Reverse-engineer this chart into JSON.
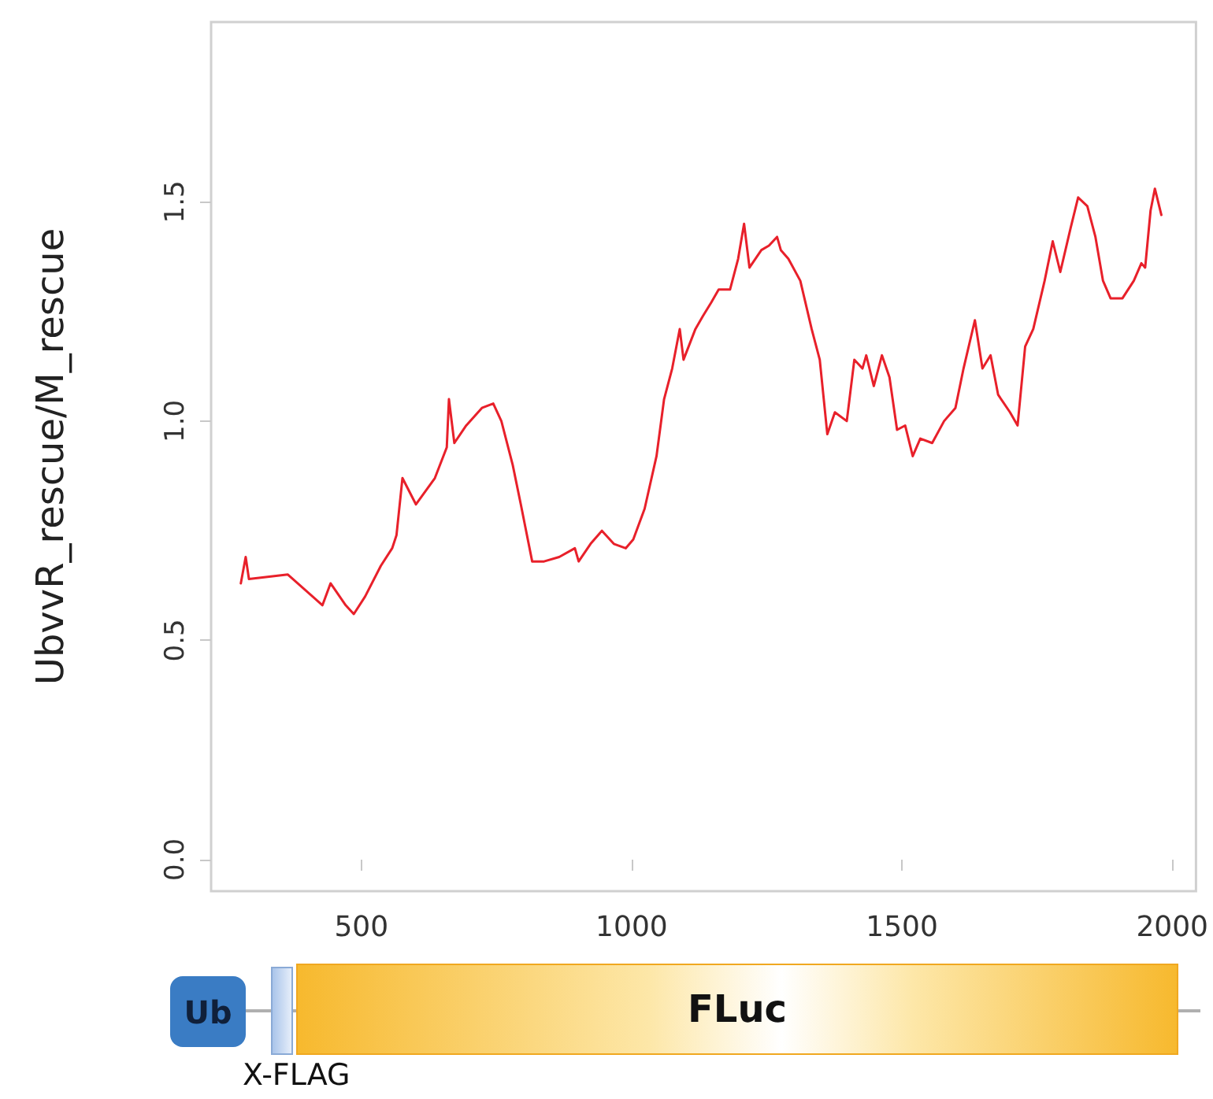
{
  "chart_data": {
    "type": "line",
    "ylabel": "UbvvR_rescue/M_rescue",
    "x": [
      277,
      286,
      292,
      364,
      428,
      443,
      471,
      486,
      507,
      536,
      557,
      565,
      576,
      601,
      636,
      658,
      662,
      672,
      694,
      723,
      744,
      759,
      780,
      795,
      816,
      838,
      866,
      895,
      902,
      924,
      945,
      967,
      989,
      1003,
      1024,
      1046,
      1060,
      1075,
      1089,
      1096,
      1118,
      1132,
      1147,
      1161,
      1182,
      1197,
      1208,
      1218,
      1240,
      1254,
      1269,
      1276,
      1290,
      1312,
      1333,
      1348,
      1362,
      1376,
      1398,
      1412,
      1427,
      1434,
      1448,
      1463,
      1477,
      1491,
      1506,
      1520,
      1534,
      1556,
      1578,
      1599,
      1614,
      1635,
      1649,
      1664,
      1678,
      1700,
      1714,
      1728,
      1743,
      1764,
      1779,
      1793,
      1812,
      1826,
      1843,
      1858,
      1872,
      1886,
      1908,
      1929,
      1943,
      1950,
      1960,
      1968,
      1980
    ],
    "series": [
      {
        "color": "#e8202a",
        "values": [
          0.63,
          0.69,
          0.64,
          0.65,
          0.58,
          0.63,
          0.58,
          0.56,
          0.6,
          0.67,
          0.71,
          0.74,
          0.87,
          0.81,
          0.87,
          0.94,
          1.05,
          0.95,
          0.99,
          1.03,
          1.04,
          1.0,
          0.9,
          0.81,
          0.68,
          0.68,
          0.69,
          0.71,
          0.68,
          0.72,
          0.75,
          0.72,
          0.71,
          0.73,
          0.8,
          0.92,
          1.05,
          1.12,
          1.21,
          1.14,
          1.21,
          1.24,
          1.27,
          1.3,
          1.3,
          1.37,
          1.45,
          1.35,
          1.39,
          1.4,
          1.42,
          1.39,
          1.37,
          1.32,
          1.21,
          1.14,
          0.97,
          1.02,
          1.0,
          1.14,
          1.12,
          1.15,
          1.08,
          1.15,
          1.1,
          0.98,
          0.99,
          0.92,
          0.96,
          0.95,
          1.0,
          1.03,
          1.12,
          1.23,
          1.12,
          1.15,
          1.06,
          1.02,
          0.99,
          1.17,
          1.21,
          1.32,
          1.41,
          1.34,
          1.44,
          1.51,
          1.49,
          1.42,
          1.32,
          1.28,
          1.28,
          1.32,
          1.36,
          1.35,
          1.48,
          1.53,
          1.47
        ]
      }
    ],
    "xlim": [
      222,
      2044
    ],
    "xticks": [
      500,
      1000,
      1500,
      2000
    ],
    "ylim": [
      -0.072,
      1.91
    ],
    "yticks": [
      {
        "value": 0,
        "label": "0.0"
      },
      0.5,
      {
        "value": 1,
        "label": "1.0"
      },
      1.5
    ],
    "grid": false,
    "marker": "none",
    "line_style": "solid",
    "annotations": [
      "Ub",
      "X-FLAG",
      "FLuc"
    ]
  }
}
